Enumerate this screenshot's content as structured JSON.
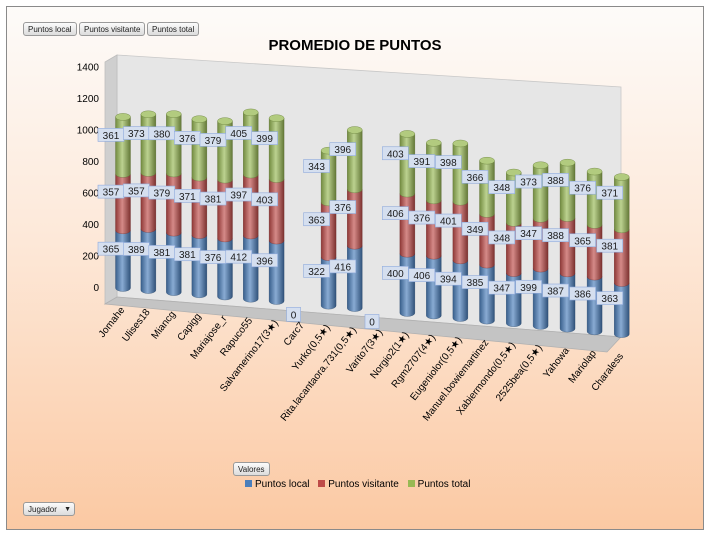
{
  "buttons": {
    "local": "Puntos local",
    "visitante": "Puntos visitante",
    "total": "Puntos total",
    "valores": "Valores",
    "jugador": "Jugador"
  },
  "colors": {
    "local": "#4a7ebb",
    "visitante": "#be4b48",
    "total": "#98b954"
  },
  "chart_data": {
    "type": "bar",
    "stacked": true,
    "three_d": true,
    "title": "PROMEDIO DE PUNTOS",
    "xlabel": "",
    "ylabel": "",
    "ylim": [
      0,
      1400
    ],
    "yticks": [
      0,
      200,
      400,
      600,
      800,
      1000,
      1200,
      1400
    ],
    "legend_position": "bottom",
    "categories": [
      "Jomahe",
      "Ulises18",
      "Miancg",
      "Capigg",
      "Mariajose_r",
      "Rapuco55",
      "Salvamerino17(3★)",
      "Carc7",
      "Yurko(0,5★)",
      "Rita.lacantaora.731(0,5★)",
      "Varito7(3★)",
      "Norgio2(1★)",
      "Rgm2707(4★)",
      "Eugeniolor(0,5★)",
      "Manuel.bowiemartinez",
      "Xabiermondo(0,5★)",
      "2525bea(0,5★)",
      "Yahowa",
      "Mariolap",
      "Charaless"
    ],
    "series": [
      {
        "name": "Puntos local",
        "values": [
          365,
          389,
          381,
          381,
          376,
          412,
          396,
          0,
          322,
          416,
          0,
          400,
          406,
          394,
          385,
          347,
          399,
          387,
          386,
          363
        ]
      },
      {
        "name": "Puntos visitante",
        "values": [
          357,
          357,
          379,
          371,
          381,
          397,
          403,
          0,
          363,
          376,
          0,
          406,
          376,
          401,
          349,
          348,
          347,
          388,
          365,
          381
        ]
      },
      {
        "name": "Puntos total",
        "values": [
          361,
          373,
          380,
          376,
          379,
          405,
          399,
          0,
          343,
          396,
          0,
          403,
          391,
          398,
          366,
          348,
          373,
          388,
          376,
          371
        ]
      }
    ]
  }
}
